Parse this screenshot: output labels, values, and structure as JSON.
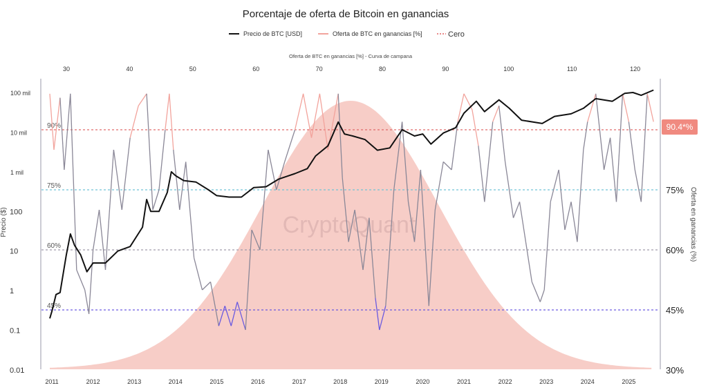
{
  "chart_data": {
    "type": "line",
    "title": "Porcentaje de oferta de Bitcoin en ganancias",
    "legend": [
      {
        "label": "Precio de BTC [USD]",
        "color": "#111111"
      },
      {
        "label": "Oferta de BTC en ganancias [%]",
        "color": "#f2a39c"
      },
      {
        "label": "Cero",
        "color": "#e06060"
      }
    ],
    "top_axis": {
      "label": "Oferta de BTC en ganancias [%] - Curva de campana",
      "ticks": [
        "30",
        "40",
        "50",
        "60",
        "70",
        "80",
        "90",
        "100",
        "110",
        "120"
      ]
    },
    "x_ticks": [
      "2011",
      "2012",
      "2013",
      "2014",
      "2015",
      "2016",
      "2017",
      "2018",
      "2019",
      "2020",
      "2021",
      "2022",
      "2023",
      "2024",
      "2025"
    ],
    "y_left": {
      "label": "Precio ($)",
      "scale": "log",
      "ticks": [
        "100 mil",
        "10 mil",
        "1 mil",
        "100",
        "10",
        "1",
        "0.1",
        "0.01"
      ],
      "range": [
        0.01,
        100000
      ]
    },
    "y_right": {
      "label": "Oferta en ganancias (%)",
      "ticks": [
        "75%",
        "60%",
        "45%",
        "30%"
      ],
      "range": [
        30,
        100
      ]
    },
    "reference_lines": [
      {
        "label": "90%",
        "value": 90,
        "color": "#e06a6a"
      },
      {
        "label": "75%",
        "value": 75,
        "color": "#6fc4d6"
      },
      {
        "label": "60%",
        "value": 60,
        "color": "#a09aaa"
      },
      {
        "label": "45%",
        "value": 45,
        "color": "#6a5ae0"
      }
    ],
    "callout": {
      "label": "90.4*%",
      "color": "#f08a80"
    },
    "watermark": "CryptoQuant",
    "btc_price": [
      [
        2010.95,
        0.2
      ],
      [
        2011.0,
        0.3
      ],
      [
        2011.1,
        0.8
      ],
      [
        2011.2,
        0.9
      ],
      [
        2011.35,
        8
      ],
      [
        2011.45,
        27
      ],
      [
        2011.55,
        14
      ],
      [
        2011.7,
        8
      ],
      [
        2011.85,
        3
      ],
      [
        2012.0,
        5
      ],
      [
        2012.3,
        5
      ],
      [
        2012.6,
        10
      ],
      [
        2012.9,
        13
      ],
      [
        2013.2,
        40
      ],
      [
        2013.3,
        200
      ],
      [
        2013.4,
        100
      ],
      [
        2013.6,
        100
      ],
      [
        2013.8,
        300
      ],
      [
        2013.9,
        1000
      ],
      [
        2014.0,
        800
      ],
      [
        2014.2,
        600
      ],
      [
        2014.5,
        550
      ],
      [
        2014.8,
        350
      ],
      [
        2015.0,
        250
      ],
      [
        2015.3,
        230
      ],
      [
        2015.6,
        230
      ],
      [
        2015.9,
        400
      ],
      [
        2016.2,
        420
      ],
      [
        2016.5,
        650
      ],
      [
        2016.9,
        900
      ],
      [
        2017.2,
        1200
      ],
      [
        2017.4,
        2500
      ],
      [
        2017.7,
        4500
      ],
      [
        2017.95,
        18000
      ],
      [
        2018.1,
        9000
      ],
      [
        2018.3,
        8000
      ],
      [
        2018.6,
        6500
      ],
      [
        2018.9,
        3500
      ],
      [
        2019.2,
        4000
      ],
      [
        2019.5,
        11500
      ],
      [
        2019.8,
        8000
      ],
      [
        2020.0,
        9000
      ],
      [
        2020.2,
        5000
      ],
      [
        2020.5,
        9500
      ],
      [
        2020.8,
        13000
      ],
      [
        2021.0,
        30000
      ],
      [
        2021.3,
        60000
      ],
      [
        2021.5,
        33000
      ],
      [
        2021.85,
        65000
      ],
      [
        2022.1,
        40000
      ],
      [
        2022.4,
        20000
      ],
      [
        2022.9,
        16500
      ],
      [
        2023.2,
        25000
      ],
      [
        2023.6,
        29000
      ],
      [
        2023.9,
        40000
      ],
      [
        2024.2,
        70000
      ],
      [
        2024.6,
        60000
      ],
      [
        2024.9,
        95000
      ],
      [
        2025.1,
        100000
      ],
      [
        2025.3,
        85000
      ],
      [
        2025.6,
        115000
      ]
    ],
    "supply_in_profit": [
      [
        2010.95,
        99
      ],
      [
        2011.05,
        85
      ],
      [
        2011.2,
        98
      ],
      [
        2011.3,
        80
      ],
      [
        2011.45,
        99
      ],
      [
        2011.6,
        55
      ],
      [
        2011.8,
        50
      ],
      [
        2011.9,
        44
      ],
      [
        2012.0,
        60
      ],
      [
        2012.15,
        70
      ],
      [
        2012.3,
        55
      ],
      [
        2012.5,
        85
      ],
      [
        2012.7,
        70
      ],
      [
        2012.9,
        88
      ],
      [
        2013.1,
        96
      ],
      [
        2013.3,
        99
      ],
      [
        2013.45,
        70
      ],
      [
        2013.6,
        75
      ],
      [
        2013.75,
        90
      ],
      [
        2013.85,
        99
      ],
      [
        2013.95,
        85
      ],
      [
        2014.1,
        70
      ],
      [
        2014.25,
        82
      ],
      [
        2014.45,
        58
      ],
      [
        2014.65,
        50
      ],
      [
        2014.85,
        52
      ],
      [
        2015.05,
        41
      ],
      [
        2015.2,
        46
      ],
      [
        2015.35,
        41
      ],
      [
        2015.5,
        47
      ],
      [
        2015.7,
        40
      ],
      [
        2015.85,
        65
      ],
      [
        2016.05,
        60
      ],
      [
        2016.25,
        85
      ],
      [
        2016.45,
        75
      ],
      [
        2016.65,
        82
      ],
      [
        2016.9,
        90
      ],
      [
        2017.1,
        99
      ],
      [
        2017.3,
        88
      ],
      [
        2017.5,
        99
      ],
      [
        2017.7,
        85
      ],
      [
        2017.95,
        99
      ],
      [
        2018.05,
        78
      ],
      [
        2018.2,
        62
      ],
      [
        2018.35,
        70
      ],
      [
        2018.55,
        55
      ],
      [
        2018.7,
        68
      ],
      [
        2018.85,
        48
      ],
      [
        2018.95,
        40
      ],
      [
        2019.1,
        46
      ],
      [
        2019.3,
        75
      ],
      [
        2019.5,
        92
      ],
      [
        2019.65,
        72
      ],
      [
        2019.8,
        62
      ],
      [
        2019.95,
        80
      ],
      [
        2020.15,
        46
      ],
      [
        2020.3,
        70
      ],
      [
        2020.5,
        82
      ],
      [
        2020.7,
        80
      ],
      [
        2020.85,
        92
      ],
      [
        2021.0,
        99
      ],
      [
        2021.2,
        95
      ],
      [
        2021.35,
        86
      ],
      [
        2021.5,
        72
      ],
      [
        2021.7,
        92
      ],
      [
        2021.85,
        96
      ],
      [
        2022.0,
        82
      ],
      [
        2022.2,
        68
      ],
      [
        2022.35,
        72
      ],
      [
        2022.5,
        62
      ],
      [
        2022.65,
        52
      ],
      [
        2022.85,
        47
      ],
      [
        2022.95,
        50
      ],
      [
        2023.1,
        72
      ],
      [
        2023.3,
        80
      ],
      [
        2023.45,
        65
      ],
      [
        2023.6,
        72
      ],
      [
        2023.75,
        62
      ],
      [
        2023.9,
        85
      ],
      [
        2024.0,
        92
      ],
      [
        2024.2,
        99
      ],
      [
        2024.4,
        80
      ],
      [
        2024.55,
        88
      ],
      [
        2024.7,
        72
      ],
      [
        2024.85,
        99
      ],
      [
        2025.0,
        92
      ],
      [
        2025.15,
        80
      ],
      [
        2025.3,
        72
      ],
      [
        2025.45,
        99
      ],
      [
        2025.6,
        92
      ]
    ]
  }
}
